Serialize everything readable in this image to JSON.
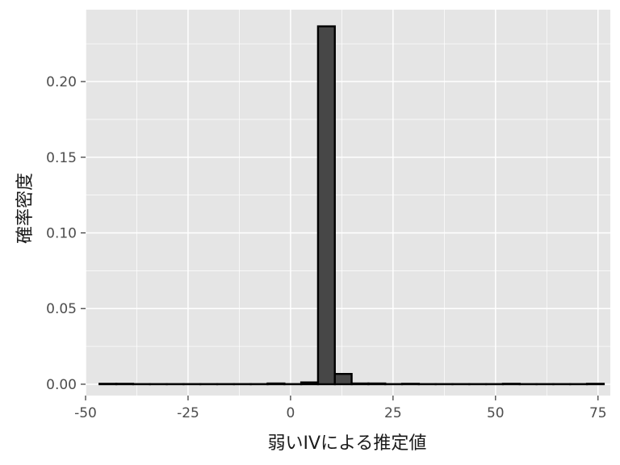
{
  "chart_data": {
    "type": "bar",
    "title": "",
    "xlabel": "弱いIVによる推定値",
    "ylabel": "確率密度",
    "xlim": [
      -50,
      78
    ],
    "ylim": [
      -0.0075,
      0.2475
    ],
    "x_ticks": [
      -50,
      -25,
      0,
      25,
      50,
      75
    ],
    "x_tick_labels": [
      "-50",
      "-25",
      "0",
      "25",
      "50",
      "75"
    ],
    "y_ticks": [
      0,
      0.05,
      0.1,
      0.15,
      0.2
    ],
    "y_tick_labels": [
      "0.00",
      "0.05",
      "0.10",
      "0.15",
      "0.20"
    ],
    "bin_width": 4.1,
    "bin_start": -46.6,
    "values": [
      0.0003,
      0.0003,
      0.0001,
      0.0001,
      0.0001,
      0.0001,
      0.0001,
      0.0001,
      0.0001,
      0.0001,
      0.0005,
      0.0001,
      0.0012,
      0.2365,
      0.0068,
      0.0005,
      0.0005,
      0.0001,
      0.0003,
      0.0001,
      0.0001,
      0.0001,
      0.0001,
      0.0001,
      0.0003,
      0.0001,
      0.0001,
      0.0001,
      0.0001,
      0.0003
    ],
    "grid": true,
    "legend": "none",
    "colors": {
      "panel_background": "#e5e5e5",
      "grid": "#ffffff",
      "bar_fill": "#474747",
      "bar_stroke": "#000000"
    }
  }
}
